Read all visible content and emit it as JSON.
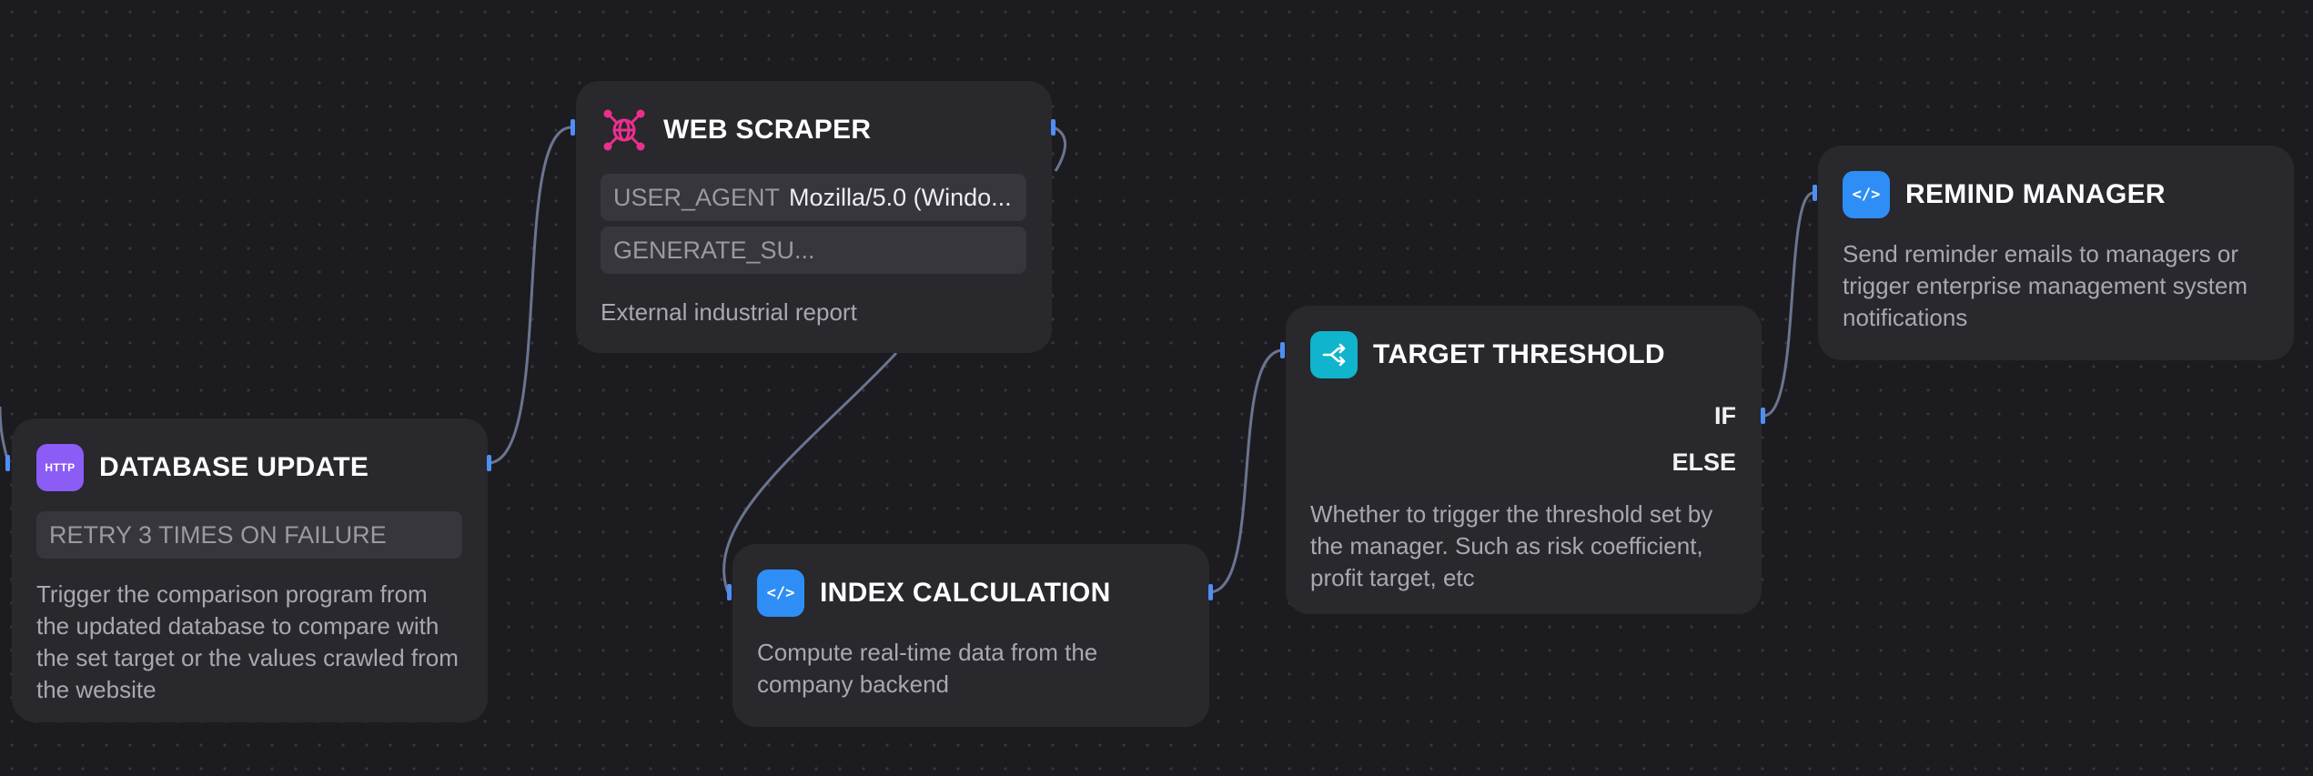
{
  "canvas": {
    "edge_color": "#6b7490",
    "handle_color": "#4f8ef7"
  },
  "nodes": {
    "database_update": {
      "title": "DATABASE UPDATE",
      "icon": "http-icon",
      "icon_label": "HTTP",
      "icon_color": "#8b5cf6",
      "param_label": "RETRY 3 TIMES ON FAILURE",
      "description": "Trigger the comparison program from the updated database to compare with the set target or the values crawled from the website"
    },
    "web_scraper": {
      "title": "WEB SCRAPER",
      "icon": "globe-network-icon",
      "icon_color": "#ec2f8f",
      "params": [
        {
          "key": "USER_AGENT",
          "value": "Mozilla/5.0 (Windo..."
        },
        {
          "key": "GENERATE_SU...",
          "value": ""
        }
      ],
      "description": "External industrial report"
    },
    "index_calculation": {
      "title": "INDEX CALCULATION",
      "icon": "code-icon",
      "icon_color": "#2f8ef5",
      "description": "Compute real-time data from the company backend"
    },
    "target_threshold": {
      "title": "TARGET THRESHOLD",
      "icon": "branch-icon",
      "icon_color": "#10b4cc",
      "branches": [
        "IF",
        "ELSE"
      ],
      "description": "Whether to trigger the threshold set by the manager. Such as risk coefficient, profit target, etc"
    },
    "remind_manager": {
      "title": "REMIND MANAGER",
      "icon": "code-icon",
      "icon_color": "#2f8ef5",
      "description": "Send reminder emails to managers or trigger enterprise management system notifications"
    }
  }
}
